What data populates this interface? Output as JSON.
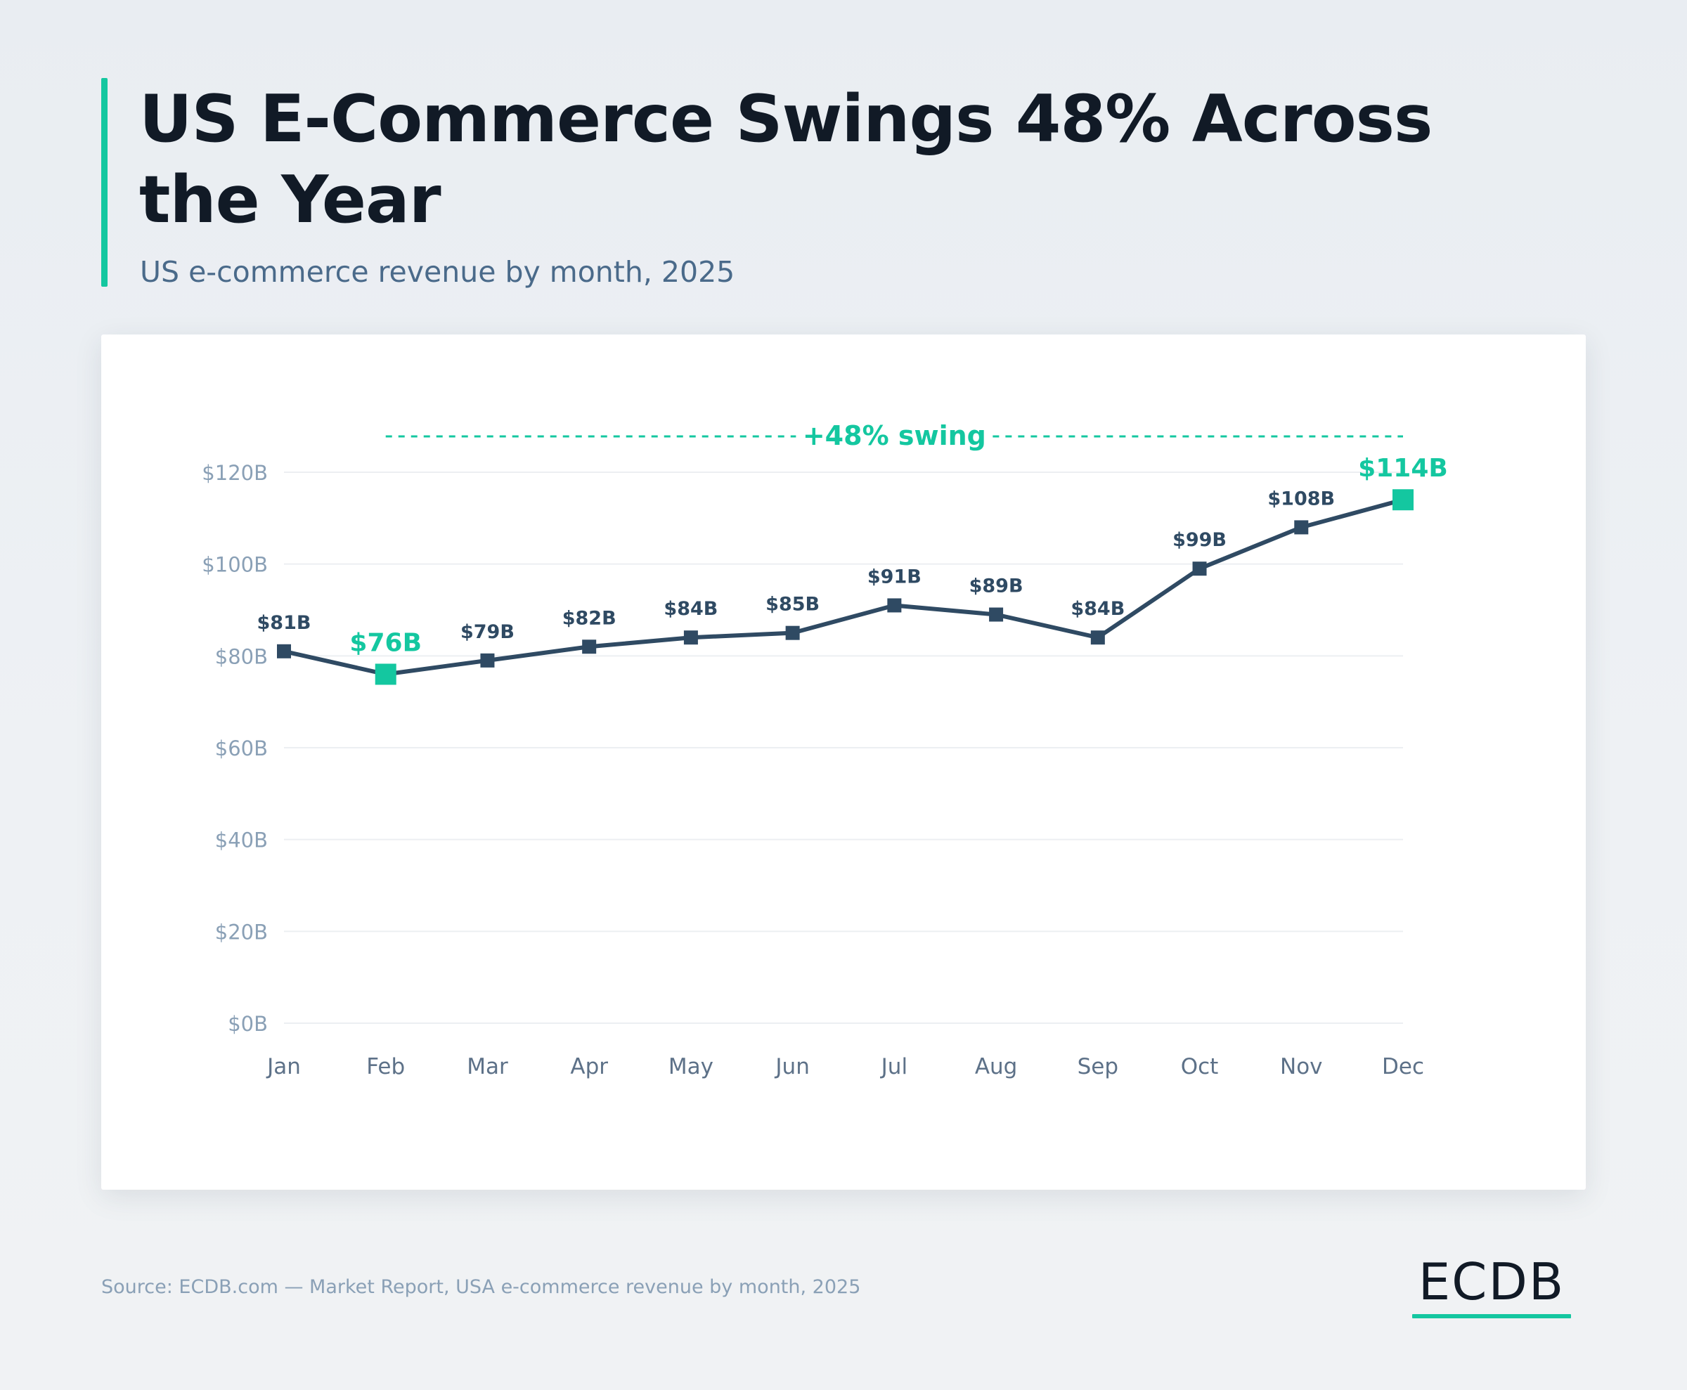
{
  "header": {
    "title": "US E-Commerce Swings 48% Across the Year",
    "subtitle": "US e-commerce revenue by month, 2025"
  },
  "footer": {
    "source": "Source: ECDB.com — Market Report, USA e-commerce revenue by month, 2025",
    "logo": "ECDB"
  },
  "colors": {
    "accent": "#14c7a0",
    "line": "#2f4a63",
    "title": "#111a26",
    "subtitle": "#4a6a8a",
    "axis_text": "#8aa0b6",
    "grid": "#eceff2"
  },
  "chart_data": {
    "type": "line",
    "categories": [
      "Jan",
      "Feb",
      "Mar",
      "Apr",
      "May",
      "Jun",
      "Jul",
      "Aug",
      "Sep",
      "Oct",
      "Nov",
      "Dec"
    ],
    "series": [
      {
        "values": [
          81,
          76,
          79,
          82,
          84,
          85,
          91,
          89,
          84,
          99,
          108,
          114
        ],
        "labels": [
          "$81B",
          "$76B",
          "$79B",
          "$82B",
          "$84B",
          "$85B",
          "$91B",
          "$89B",
          "$84B",
          "$99B",
          "$108B",
          "$114B"
        ]
      }
    ],
    "highlight_indices": [
      1,
      11
    ],
    "y_ticks": [
      0,
      20,
      40,
      60,
      80,
      100,
      120
    ],
    "y_tick_labels": [
      "$0B",
      "$20B",
      "$40B",
      "$60B",
      "$80B",
      "$100B",
      "$120B"
    ],
    "ylim": [
      0,
      120
    ],
    "grid": true,
    "annotation": {
      "text": "+48% swing",
      "from_category": "Feb",
      "to_category": "Dec"
    },
    "xlabel": "",
    "ylabel": ""
  }
}
